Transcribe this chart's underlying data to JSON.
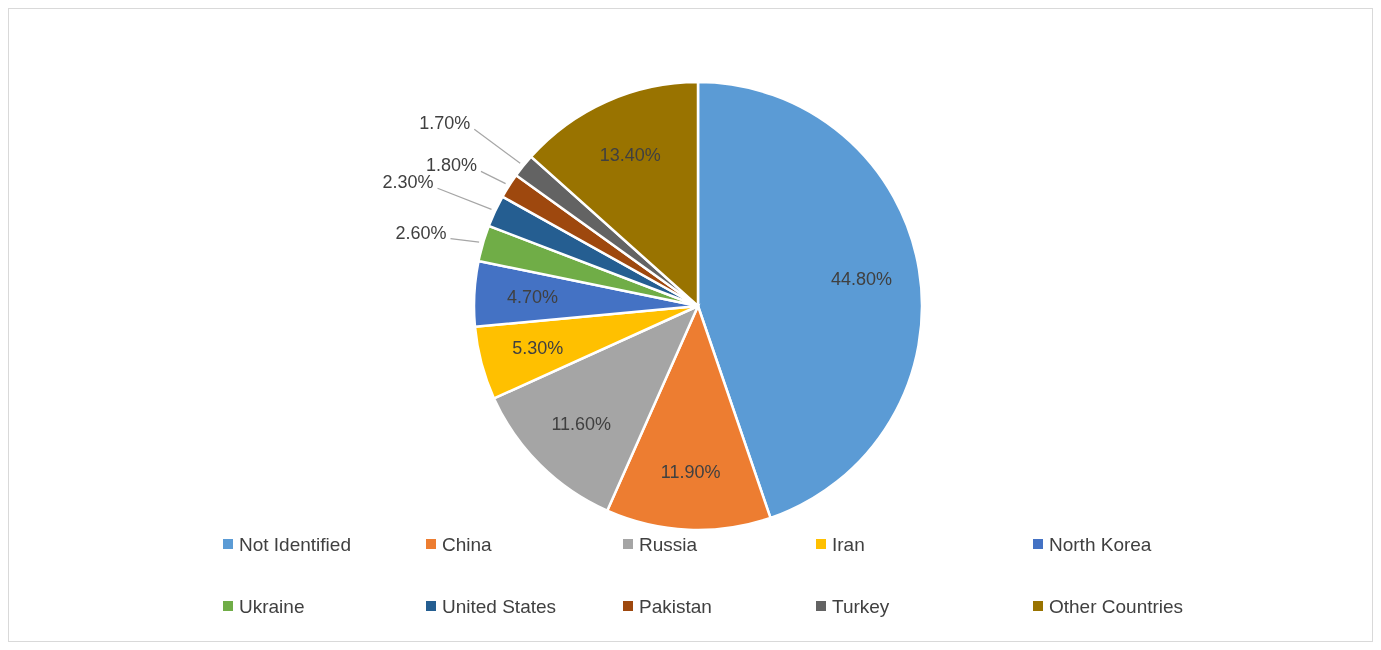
{
  "chart_data": {
    "type": "pie",
    "categories": [
      "Not Identified",
      "China",
      "Russia",
      "Iran",
      "North Korea",
      "Ukraine",
      "United States",
      "Pakistan",
      "Turkey",
      "Other Countries"
    ],
    "values": [
      44.8,
      11.9,
      11.6,
      5.3,
      4.7,
      2.6,
      2.3,
      1.8,
      1.7,
      13.4
    ],
    "value_labels": [
      "44.80%",
      "11.90%",
      "11.60%",
      "5.30%",
      "4.70%",
      "2.60%",
      "2.30%",
      "1.80%",
      "1.70%",
      "13.40%"
    ],
    "colors": [
      "#5b9bd5",
      "#ed7d31",
      "#a5a5a5",
      "#ffc000",
      "#4472c4",
      "#70ad47",
      "#255e91",
      "#9e480e",
      "#636363",
      "#997300"
    ],
    "legend": "bottom"
  }
}
